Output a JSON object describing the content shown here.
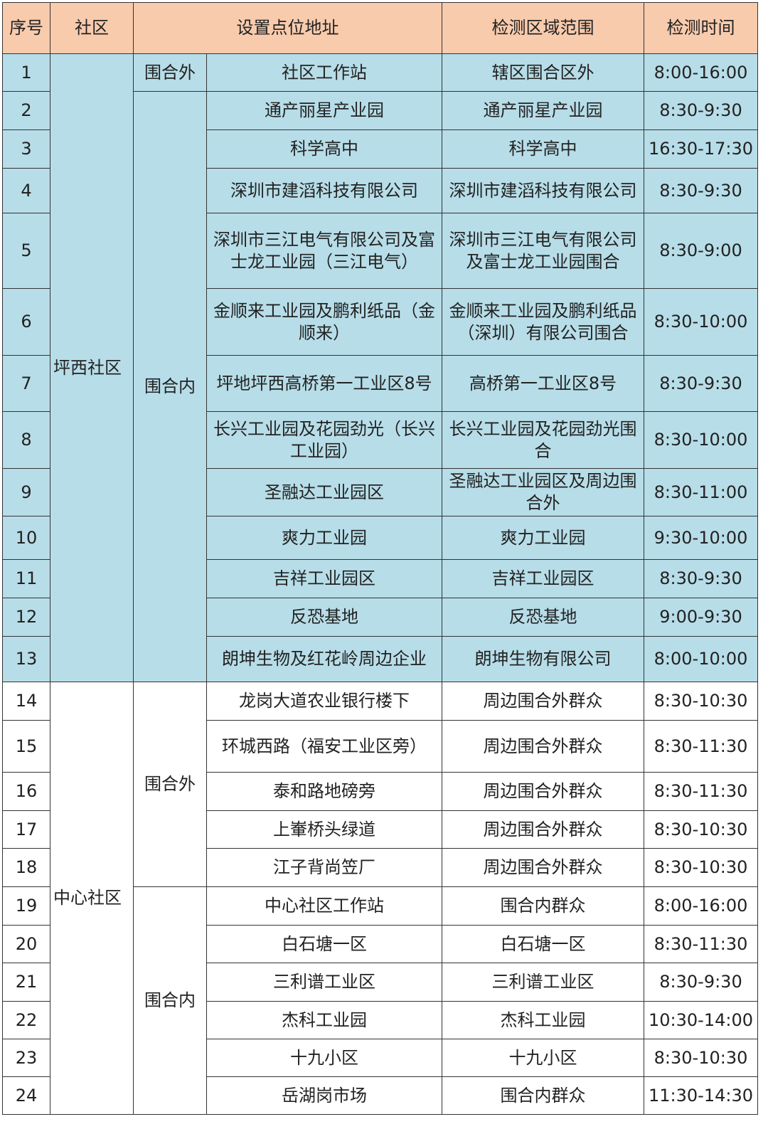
{
  "header": [
    "序号",
    "社区",
    "设置点位地址",
    "检测区域范围",
    "检测时间"
  ],
  "colors": {
    "header_bg": "#f8cbad",
    "pingxi_bg": "#b7dde8",
    "zhongxin_bg": "#ffffff"
  },
  "communities": [
    {
      "name": "坪西社区",
      "groups": [
        {
          "type": "围合外",
          "rows": [
            {
              "no": "1",
              "address": "社区工作站",
              "area": "辖区围合区外",
              "time": "8:00-16:00"
            }
          ]
        },
        {
          "type": "围合内",
          "rows": [
            {
              "no": "2",
              "address": "通产丽星产业园",
              "area": "通产丽星产业园",
              "time": "8:30-9:30"
            },
            {
              "no": "3",
              "address": "科学高中",
              "area": "科学高中",
              "time": "16:30-17:30"
            },
            {
              "no": "4",
              "address": "深圳市建滔科技有限公司",
              "area": "深圳市建滔科技有限公司",
              "time": "8:30-9:30"
            },
            {
              "no": "5",
              "address": "深圳市三江电气有限公司及富士龙工业园（三江电气）",
              "area": "深圳市三江电气有限公司及富士龙工业园围合",
              "time": "8:30-9:00"
            },
            {
              "no": "6",
              "address": "金顺来工业园及鹏利纸品（金顺来）",
              "area": "金顺来工业园及鹏利纸品（深圳）有限公司围合",
              "time": "8:30-10:00"
            },
            {
              "no": "7",
              "address": "坪地坪西高桥第一工业区8号",
              "area": "高桥第一工业区8号",
              "time": "8:30-9:30"
            },
            {
              "no": "8",
              "address": "长兴工业园及花园劲光（长兴工业园）",
              "area": "长兴工业园及花园劲光围合",
              "time": "8:30-10:00"
            },
            {
              "no": "9",
              "address": "圣融达工业园区",
              "area": "圣融达工业园区及周边围合外",
              "time": "8:30-11:00"
            },
            {
              "no": "10",
              "address": "爽力工业园",
              "area": "爽力工业园",
              "time": "9:30-10:00"
            },
            {
              "no": "11",
              "address": "吉祥工业园区",
              "area": "吉祥工业园区",
              "time": "8:30-9:30"
            },
            {
              "no": "12",
              "address": "反恐基地",
              "area": "反恐基地",
              "time": "9:00-9:30"
            },
            {
              "no": "13",
              "address": "朗坤生物及红花岭周边企业",
              "area": "朗坤生物有限公司",
              "time": "8:00-10:00"
            }
          ]
        }
      ]
    },
    {
      "name": "中心社区",
      "groups": [
        {
          "type": "围合外",
          "rows": [
            {
              "no": "14",
              "address": "龙岗大道农业银行楼下",
              "area": "周边围合外群众",
              "time": "8:30-10:30"
            },
            {
              "no": "15",
              "address": "环城西路（福安工业区旁）",
              "area": "周边围合外群众",
              "time": "8:30-11:30"
            },
            {
              "no": "16",
              "address": "泰和路地磅旁",
              "area": "周边围合外群众",
              "time": "8:30-11:30"
            },
            {
              "no": "17",
              "address": "上輋桥头绿道",
              "area": "周边围合外群众",
              "time": "8:30-10:30"
            },
            {
              "no": "18",
              "address": "江子背尚笠厂",
              "area": "周边围合外群众",
              "time": "8:30-10:30"
            }
          ]
        },
        {
          "type": "围合内",
          "rows": [
            {
              "no": "19",
              "address": "中心社区工作站",
              "area": "围合内群众",
              "time": "8:00-16:00"
            },
            {
              "no": "20",
              "address": "白石塘一区",
              "area": "白石塘一区",
              "time": "8:30-11:30"
            },
            {
              "no": "21",
              "address": "三利谱工业区",
              "area": "三利谱工业区",
              "time": "8:30-9:30"
            },
            {
              "no": "22",
              "address": "杰科工业园",
              "area": "杰科工业园",
              "time": "10:30-14:00"
            },
            {
              "no": "23",
              "address": "十九小区",
              "area": "十九小区",
              "time": "8:30-10:30"
            },
            {
              "no": "24",
              "address": "岳湖岗市场",
              "area": "围合内群众",
              "time": "11:30-14:30"
            }
          ]
        }
      ]
    }
  ]
}
